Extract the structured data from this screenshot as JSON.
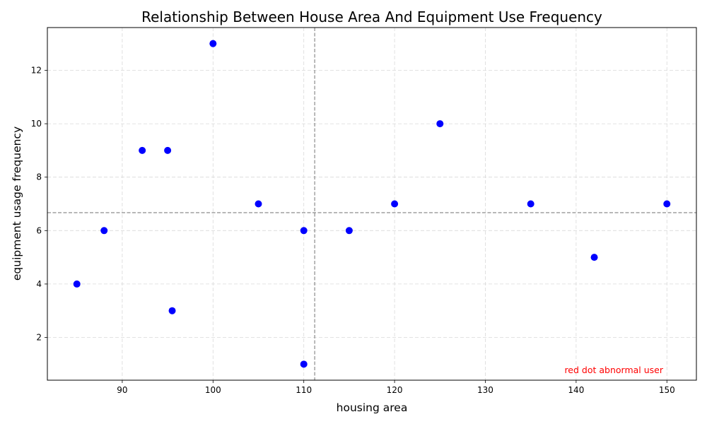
{
  "chart_data": {
    "type": "scatter",
    "title": "Relationship Between House Area And Equipment Use Frequency",
    "xlabel": "housing area",
    "ylabel": "equipment usage frequency",
    "xlim": [
      81.75,
      153.25
    ],
    "ylim": [
      0.4,
      13.6
    ],
    "xticks": [
      90,
      100,
      110,
      120,
      130,
      140,
      150
    ],
    "yticks": [
      2,
      4,
      6,
      8,
      10,
      12
    ],
    "grid": true,
    "point_color": "#0000ff",
    "reference_lines": {
      "x_mean": 111.2,
      "y_mean": 6.67,
      "color": "#808080"
    },
    "points": [
      {
        "x": 85,
        "y": 4
      },
      {
        "x": 88,
        "y": 6
      },
      {
        "x": 92.2,
        "y": 9
      },
      {
        "x": 95,
        "y": 9
      },
      {
        "x": 95.5,
        "y": 3
      },
      {
        "x": 100,
        "y": 13
      },
      {
        "x": 105,
        "y": 7
      },
      {
        "x": 110,
        "y": 6
      },
      {
        "x": 110,
        "y": 1
      },
      {
        "x": 115,
        "y": 6
      },
      {
        "x": 120,
        "y": 7
      },
      {
        "x": 125,
        "y": 10
      },
      {
        "x": 135,
        "y": 7
      },
      {
        "x": 142,
        "y": 5
      },
      {
        "x": 150,
        "y": 7
      }
    ],
    "annotation": {
      "text": "red dot abnormal user",
      "color": "#ff0000"
    }
  }
}
